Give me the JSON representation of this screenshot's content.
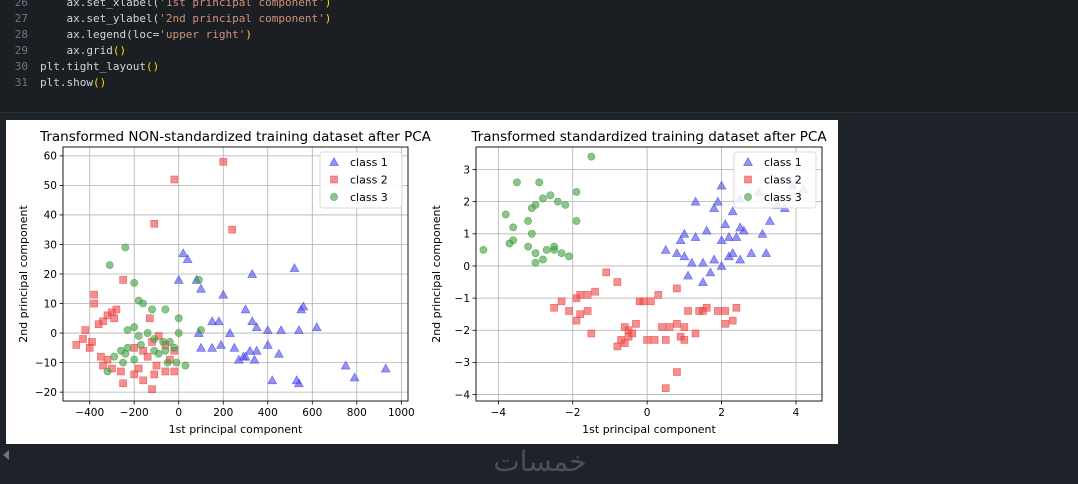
{
  "code": {
    "lines": [
      {
        "num": "26",
        "pre": "    ax.set_xlabel(",
        "str": "'1st principal component'",
        "post": ")"
      },
      {
        "num": "27",
        "pre": "    ax.set_ylabel(",
        "str": "'2nd principal component'",
        "post": ")"
      },
      {
        "num": "28",
        "pre": "    ax.legend(loc=",
        "str": "'upper right'",
        "post": ")"
      },
      {
        "num": "29",
        "pre": "    ax.grid",
        "str": "",
        "post": "()"
      },
      {
        "num": "30",
        "pre": "plt.tight_layout",
        "str": "",
        "post": "()"
      },
      {
        "num": "31",
        "pre": "plt.show",
        "str": "",
        "post": "()"
      }
    ]
  },
  "watermark": "خمسات",
  "colors": {
    "class1": "#4b4bea",
    "class2": "#ef4545",
    "class3": "#3f9e3f"
  },
  "chart_data": [
    {
      "type": "scatter",
      "title": "Transformed NON-standardized training dataset after PCA",
      "xlabel": "1st principal component",
      "ylabel": "2nd principal component",
      "xlim": [
        -520,
        1030
      ],
      "ylim": [
        -23,
        63
      ],
      "xticks": [
        -400,
        -200,
        0,
        200,
        400,
        600,
        800,
        1000
      ],
      "yticks": [
        -20,
        -10,
        0,
        10,
        20,
        30,
        40,
        50,
        60
      ],
      "grid": true,
      "legend": "upper right",
      "series": [
        {
          "name": "class 1",
          "marker": "triangle",
          "points": [
            [
              20,
              27
            ],
            [
              40,
              25
            ],
            [
              0,
              18
            ],
            [
              100,
              15
            ],
            [
              80,
              18
            ],
            [
              200,
              13
            ],
            [
              330,
              20
            ],
            [
              520,
              22
            ],
            [
              560,
              9
            ],
            [
              550,
              8
            ],
            [
              300,
              8
            ],
            [
              150,
              4
            ],
            [
              180,
              4
            ],
            [
              330,
              4
            ],
            [
              350,
              2
            ],
            [
              400,
              1
            ],
            [
              460,
              1
            ],
            [
              540,
              1
            ],
            [
              620,
              2
            ],
            [
              100,
              -5
            ],
            [
              150,
              -5
            ],
            [
              190,
              -4
            ],
            [
              250,
              -5
            ],
            [
              270,
              -9
            ],
            [
              290,
              -8
            ],
            [
              320,
              -6
            ],
            [
              350,
              -6
            ],
            [
              340,
              -9
            ],
            [
              300,
              -8
            ],
            [
              400,
              -4
            ],
            [
              450,
              -7
            ],
            [
              420,
              -16
            ],
            [
              530,
              -16
            ],
            [
              540,
              -17
            ],
            [
              750,
              -11
            ],
            [
              790,
              -15
            ],
            [
              930,
              -12
            ],
            [
              90,
              0
            ],
            [
              230,
              0
            ]
          ]
        },
        {
          "name": "class 2",
          "marker": "square",
          "points": [
            [
              200,
              58
            ],
            [
              -20,
              52
            ],
            [
              -110,
              37
            ],
            [
              240,
              35
            ],
            [
              -250,
              18
            ],
            [
              -380,
              13
            ],
            [
              -380,
              10
            ],
            [
              -300,
              7
            ],
            [
              -320,
              6
            ],
            [
              -290,
              5
            ],
            [
              -280,
              8
            ],
            [
              -340,
              4
            ],
            [
              -360,
              3
            ],
            [
              -420,
              1
            ],
            [
              -430,
              -2
            ],
            [
              -390,
              -3
            ],
            [
              -460,
              -4
            ],
            [
              -400,
              -5
            ],
            [
              -350,
              -8
            ],
            [
              -320,
              -9
            ],
            [
              -340,
              -11
            ],
            [
              -300,
              -12
            ],
            [
              -260,
              -13
            ],
            [
              -250,
              -17
            ],
            [
              -200,
              -14
            ],
            [
              -180,
              -12
            ],
            [
              -160,
              -16
            ],
            [
              -100,
              -11
            ],
            [
              -110,
              -14
            ],
            [
              -60,
              -13
            ],
            [
              -20,
              -13
            ],
            [
              -40,
              -9
            ],
            [
              -140,
              -8
            ],
            [
              -160,
              -6
            ],
            [
              -60,
              -4
            ],
            [
              -20,
              -6
            ],
            [
              -120,
              -3
            ],
            [
              -90,
              -1
            ],
            [
              -130,
              5
            ],
            [
              -200,
              -5
            ],
            [
              -120,
              -19
            ]
          ]
        },
        {
          "name": "class 3",
          "marker": "circle",
          "points": [
            [
              -240,
              29
            ],
            [
              -310,
              23
            ],
            [
              -200,
              17
            ],
            [
              -180,
              11
            ],
            [
              -160,
              10
            ],
            [
              -120,
              8
            ],
            [
              -60,
              8
            ],
            [
              0,
              5
            ],
            [
              90,
              18
            ],
            [
              0,
              0
            ],
            [
              -200,
              2
            ],
            [
              -180,
              -1
            ],
            [
              -140,
              0
            ],
            [
              -110,
              -2
            ],
            [
              -70,
              -3
            ],
            [
              -40,
              -3
            ],
            [
              -20,
              -5
            ],
            [
              -60,
              -6
            ],
            [
              -110,
              -6
            ],
            [
              -170,
              -4
            ],
            [
              -230,
              -5
            ],
            [
              -260,
              -6
            ],
            [
              -290,
              -8
            ],
            [
              -240,
              -7
            ],
            [
              -200,
              -9
            ],
            [
              -230,
              1
            ],
            [
              -250,
              -10
            ],
            [
              -320,
              -13
            ],
            [
              30,
              -11
            ],
            [
              -90,
              -7
            ],
            [
              -50,
              -10
            ],
            [
              -10,
              -10
            ],
            [
              100,
              1
            ]
          ]
        }
      ]
    },
    {
      "type": "scatter",
      "title": "Transformed standardized training dataset after PCA",
      "xlabel": "1st principal component",
      "ylabel": "2nd principal component",
      "xlim": [
        -4.6,
        4.7
      ],
      "ylim": [
        -4.2,
        3.7
      ],
      "xticks": [
        -4,
        -2,
        0,
        2,
        4
      ],
      "yticks": [
        -4,
        -3,
        -2,
        -1,
        0,
        1,
        2,
        3
      ],
      "grid": true,
      "legend": "upper right",
      "series": [
        {
          "name": "class 1",
          "marker": "triangle",
          "points": [
            [
              2,
              2.5
            ],
            [
              1.9,
              2
            ],
            [
              1.8,
              1.8
            ],
            [
              2.1,
              1.3
            ],
            [
              2.3,
              1.7
            ],
            [
              2.5,
              2.1
            ],
            [
              3,
              2.3
            ],
            [
              3.5,
              1.9
            ],
            [
              3.9,
              2.5
            ],
            [
              4.2,
              2.4
            ],
            [
              3.3,
              1.4
            ],
            [
              3.1,
              1
            ],
            [
              2.5,
              1.2
            ],
            [
              2.4,
              0.9
            ],
            [
              2,
              0.8
            ],
            [
              1.6,
              1.1
            ],
            [
              1.3,
              0.9
            ],
            [
              1,
              1
            ],
            [
              0.9,
              0.8
            ],
            [
              0.5,
              0.5
            ],
            [
              0.8,
              0.4
            ],
            [
              1,
              0.3
            ],
            [
              1.2,
              0.1
            ],
            [
              1.5,
              0.1
            ],
            [
              1.8,
              0.2
            ],
            [
              2.2,
              0.3
            ],
            [
              2.3,
              0.4
            ],
            [
              2.5,
              0.2
            ],
            [
              2.8,
              0.4
            ],
            [
              3.2,
              0.4
            ],
            [
              2.2,
              0.9
            ],
            [
              1.7,
              -0.2
            ],
            [
              1.5,
              -0.5
            ],
            [
              1.1,
              -0.3
            ],
            [
              2,
              0
            ],
            [
              3.7,
              1.8
            ],
            [
              2.6,
              1.1
            ],
            [
              1.3,
              2
            ]
          ]
        },
        {
          "name": "class 2",
          "marker": "square",
          "points": [
            [
              -1.1,
              -0.2
            ],
            [
              -1.8,
              -0.9
            ],
            [
              -2.3,
              -1.1
            ],
            [
              -1.9,
              -1
            ],
            [
              -1.6,
              -0.9
            ],
            [
              -1.4,
              -0.8
            ],
            [
              -2.1,
              -1.4
            ],
            [
              -1.8,
              -1.5
            ],
            [
              -1.6,
              -1.4
            ],
            [
              -2.5,
              -1.3
            ],
            [
              -1.9,
              -1.7
            ],
            [
              -1.5,
              -2.1
            ],
            [
              -0.8,
              -0.5
            ],
            [
              -0.6,
              -1.9
            ],
            [
              -0.5,
              -2
            ],
            [
              -0.3,
              -1.8
            ],
            [
              -0.5,
              -2.2
            ],
            [
              -0.7,
              -2.3
            ],
            [
              -0.8,
              -2.5
            ],
            [
              -0.6,
              -2.4
            ],
            [
              -0.4,
              -2.1
            ],
            [
              -0.1,
              -1.1
            ],
            [
              0.1,
              -1.1
            ],
            [
              0.3,
              -0.9
            ],
            [
              0.4,
              -1.9
            ],
            [
              0.6,
              -1.9
            ],
            [
              0.8,
              -1.8
            ],
            [
              1,
              -1.9
            ],
            [
              1.1,
              -1.4
            ],
            [
              1.4,
              -1.4
            ],
            [
              1.5,
              -1.4
            ],
            [
              0.8,
              -0.7
            ],
            [
              0.5,
              -2.3
            ],
            [
              0.2,
              -2.3
            ],
            [
              0,
              -2.3
            ],
            [
              0.9,
              -2.2
            ],
            [
              1,
              -2.3
            ],
            [
              1.3,
              -2.1
            ],
            [
              2.1,
              -1.4
            ],
            [
              2.1,
              -1.8
            ],
            [
              2.3,
              -1.7
            ],
            [
              2.4,
              -1.3
            ],
            [
              0.8,
              -3.3
            ],
            [
              0.5,
              -3.8
            ],
            [
              -0.2,
              -1.1
            ],
            [
              1.9,
              -1.4
            ],
            [
              1.6,
              -1.3
            ]
          ]
        },
        {
          "name": "class 3",
          "marker": "circle",
          "points": [
            [
              -1.5,
              3.4
            ],
            [
              -3.5,
              2.6
            ],
            [
              -2.9,
              2.6
            ],
            [
              -2.6,
              2.2
            ],
            [
              -2.4,
              2
            ],
            [
              -2.2,
              1.9
            ],
            [
              -1.9,
              2.3
            ],
            [
              -3.1,
              1.8
            ],
            [
              -3,
              1.9
            ],
            [
              -2.8,
              2.1
            ],
            [
              -3.8,
              1.6
            ],
            [
              -3.6,
              1.2
            ],
            [
              -3.2,
              1.4
            ],
            [
              -3.1,
              1
            ],
            [
              -3.7,
              0.7
            ],
            [
              -3.6,
              0.8
            ],
            [
              -3.2,
              0.6
            ],
            [
              -3,
              0.4
            ],
            [
              -2.8,
              0.2
            ],
            [
              -2.7,
              0.5
            ],
            [
              -2.5,
              0.6
            ],
            [
              -2.3,
              0.4
            ],
            [
              -2.1,
              0.3
            ],
            [
              -1.9,
              1.4
            ],
            [
              -4.4,
              0.5
            ],
            [
              -3,
              0.1
            ],
            [
              -2.5,
              0.5
            ]
          ]
        }
      ]
    }
  ]
}
